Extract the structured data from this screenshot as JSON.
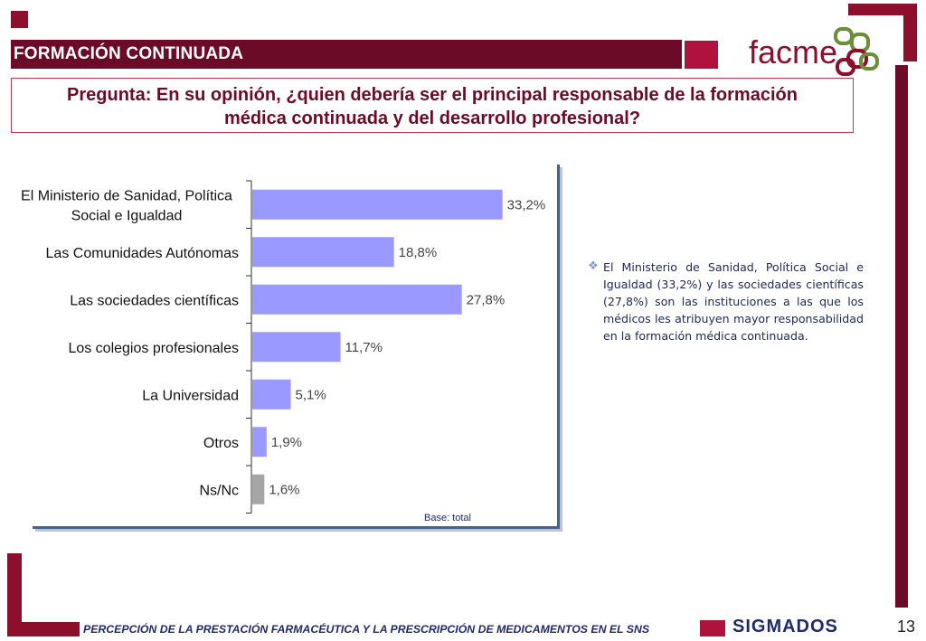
{
  "header": {
    "section_title": "FORMACIÓN CONTINUADA",
    "logo_text": "facme"
  },
  "question": {
    "line1": "Pregunta: En su opinión, ¿quien debería ser el principal responsable de la formación",
    "line2": "médica continuada y del desarrollo profesional?"
  },
  "chart_data": {
    "type": "bar",
    "orientation": "horizontal",
    "categories": [
      [
        "El Ministerio de Sanidad, Política",
        "Social e Igualdad"
      ],
      [
        "Las Comunidades Autónomas"
      ],
      [
        "Las sociedades científicas"
      ],
      [
        "Los colegios profesionales"
      ],
      [
        "La Universidad"
      ],
      [
        "Otros"
      ],
      [
        "Ns/Nc"
      ]
    ],
    "values": [
      33.2,
      18.8,
      27.8,
      11.7,
      5.1,
      1.9,
      1.6
    ],
    "value_labels": [
      "33,2%",
      "18,8%",
      "27,8%",
      "11,7%",
      "5,1%",
      "1,9%",
      "1,6%"
    ],
    "colors": [
      "#9999ff",
      "#9999ff",
      "#9999ff",
      "#9999ff",
      "#9999ff",
      "#9999ff",
      "#a6a6a6"
    ],
    "xlim": [
      0,
      36
    ],
    "grid": false,
    "legend": "none"
  },
  "base_label": "Base: total",
  "commentary": {
    "bullet_icon": "diamond-bullet-icon",
    "text": "El Ministerio de Sanidad, Política Social e Igualdad (33,2%) y las sociedades científicas (27,8%) son las instituciones a las que los médicos les atribuyen mayor responsabilidad en la formación médica continuada."
  },
  "footer": {
    "text": "PERCEPCIÓN DE LA PRESTACIÓN FARMACÉUTICA Y LA PRESCRIPCIÓN DE MEDICAMENTOS EN EL SNS",
    "brand": "SIGMADOS",
    "page_number": "13"
  },
  "colors": {
    "brand_dark": "#6b0b27",
    "brand_red": "#b0123d",
    "navy": "#1f2a6b"
  }
}
